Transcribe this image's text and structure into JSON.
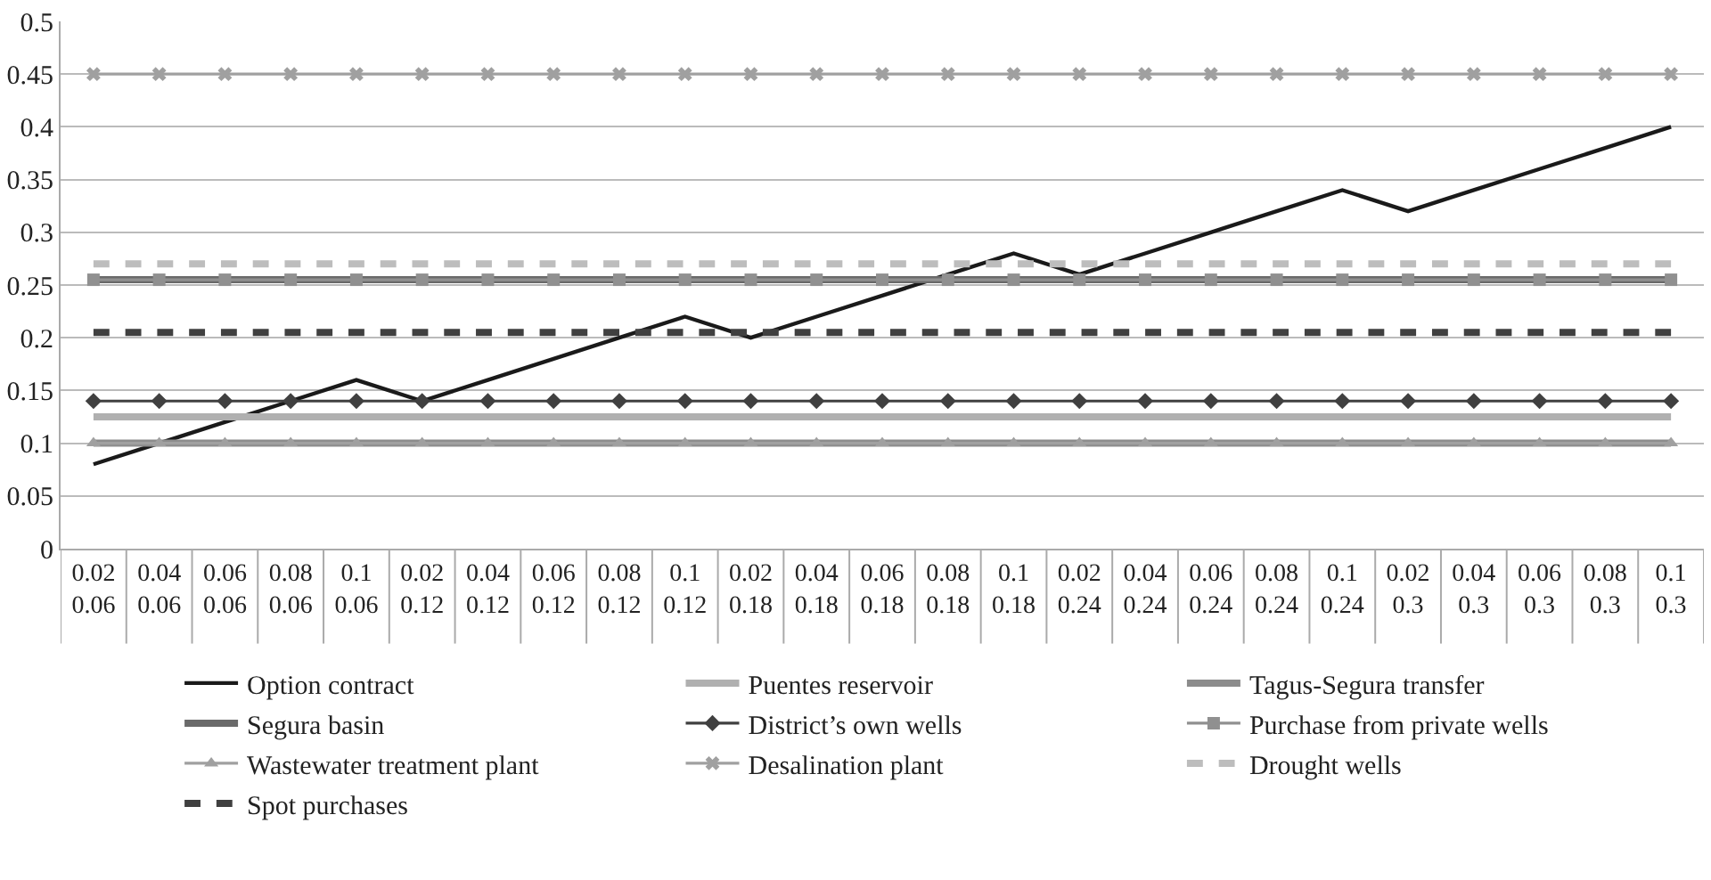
{
  "chart_data": {
    "type": "line",
    "categories": [
      "0.02\n0.06",
      "0.04\n0.06",
      "0.06\n0.06",
      "0.08\n0.06",
      "0.1\n0.06",
      "0.02\n0.12",
      "0.04\n0.12",
      "0.06\n0.12",
      "0.08\n0.12",
      "0.1\n0.12",
      "0.02\n0.18",
      "0.04\n0.18",
      "0.06\n0.18",
      "0.08\n0.18",
      "0.1\n0.18",
      "0.02\n0.24",
      "0.04\n0.24",
      "0.06\n0.24",
      "0.08\n0.24",
      "0.1\n0.24",
      "0.02\n0.3",
      "0.04\n0.3",
      "0.06\n0.3",
      "0.08\n0.3",
      "0.1\n0.3"
    ],
    "series": [
      {
        "name": "Option contract",
        "color": "#1a1a1a",
        "marker": "none",
        "line_style": "solid",
        "values": [
          0.08,
          0.1,
          0.12,
          0.14,
          0.16,
          0.14,
          0.16,
          0.18,
          0.2,
          0.22,
          0.2,
          0.22,
          0.24,
          0.26,
          0.28,
          0.26,
          0.28,
          0.3,
          0.32,
          0.34,
          0.32,
          0.34,
          0.36,
          0.38,
          0.4
        ]
      },
      {
        "name": "Puentes reservoir",
        "color": "#b0b0b0",
        "marker": "none",
        "line_style": "solid",
        "values": [
          0.125,
          0.125,
          0.125,
          0.125,
          0.125,
          0.125,
          0.125,
          0.125,
          0.125,
          0.125,
          0.125,
          0.125,
          0.125,
          0.125,
          0.125,
          0.125,
          0.125,
          0.125,
          0.125,
          0.125,
          0.125,
          0.125,
          0.125,
          0.125,
          0.125
        ]
      },
      {
        "name": "Tagus-Segura transfer",
        "color": "#8c8c8c",
        "marker": "none",
        "line_style": "solid",
        "values": [
          0.1,
          0.1,
          0.1,
          0.1,
          0.1,
          0.1,
          0.1,
          0.1,
          0.1,
          0.1,
          0.1,
          0.1,
          0.1,
          0.1,
          0.1,
          0.1,
          0.1,
          0.1,
          0.1,
          0.1,
          0.1,
          0.1,
          0.1,
          0.1,
          0.1
        ]
      },
      {
        "name": "Segura basin",
        "color": "#6a6a6a",
        "marker": "none",
        "line_style": "solid",
        "values": [
          0.255,
          0.255,
          0.255,
          0.255,
          0.255,
          0.255,
          0.255,
          0.255,
          0.255,
          0.255,
          0.255,
          0.255,
          0.255,
          0.255,
          0.255,
          0.255,
          0.255,
          0.255,
          0.255,
          0.255,
          0.255,
          0.255,
          0.255,
          0.255,
          0.255
        ]
      },
      {
        "name": "District’s own wells",
        "color": "#404040",
        "marker": "diamond",
        "line_style": "solid",
        "values": [
          0.14,
          0.14,
          0.14,
          0.14,
          0.14,
          0.14,
          0.14,
          0.14,
          0.14,
          0.14,
          0.14,
          0.14,
          0.14,
          0.14,
          0.14,
          0.14,
          0.14,
          0.14,
          0.14,
          0.14,
          0.14,
          0.14,
          0.14,
          0.14,
          0.14
        ]
      },
      {
        "name": "Purchase from private wells",
        "color": "#909090",
        "marker": "square",
        "line_style": "solid",
        "values": [
          0.255,
          0.255,
          0.255,
          0.255,
          0.255,
          0.255,
          0.255,
          0.255,
          0.255,
          0.255,
          0.255,
          0.255,
          0.255,
          0.255,
          0.255,
          0.255,
          0.255,
          0.255,
          0.255,
          0.255,
          0.255,
          0.255,
          0.255,
          0.255,
          0.255
        ]
      },
      {
        "name": "Wastewater treatment plant",
        "color": "#a0a0a0",
        "marker": "triangle",
        "line_style": "solid",
        "values": [
          0.1,
          0.1,
          0.1,
          0.1,
          0.1,
          0.1,
          0.1,
          0.1,
          0.1,
          0.1,
          0.1,
          0.1,
          0.1,
          0.1,
          0.1,
          0.1,
          0.1,
          0.1,
          0.1,
          0.1,
          0.1,
          0.1,
          0.1,
          0.1,
          0.1
        ]
      },
      {
        "name": "Desalination plant",
        "color": "#a0a0a0",
        "marker": "cross",
        "line_style": "solid",
        "values": [
          0.45,
          0.45,
          0.45,
          0.45,
          0.45,
          0.45,
          0.45,
          0.45,
          0.45,
          0.45,
          0.45,
          0.45,
          0.45,
          0.45,
          0.45,
          0.45,
          0.45,
          0.45,
          0.45,
          0.45,
          0.45,
          0.45,
          0.45,
          0.45,
          0.45
        ]
      },
      {
        "name": "Drought wells",
        "color": "#bdbdbd",
        "marker": "none",
        "line_style": "dashed",
        "values": [
          0.27,
          0.27,
          0.27,
          0.27,
          0.27,
          0.27,
          0.27,
          0.27,
          0.27,
          0.27,
          0.27,
          0.27,
          0.27,
          0.27,
          0.27,
          0.27,
          0.27,
          0.27,
          0.27,
          0.27,
          0.27,
          0.27,
          0.27,
          0.27,
          0.27
        ]
      },
      {
        "name": "Spot purchases",
        "color": "#404040",
        "marker": "none",
        "line_style": "dashed",
        "values": [
          0.205,
          0.205,
          0.205,
          0.205,
          0.205,
          0.205,
          0.205,
          0.205,
          0.205,
          0.205,
          0.205,
          0.205,
          0.205,
          0.205,
          0.205,
          0.205,
          0.205,
          0.205,
          0.205,
          0.205,
          0.205,
          0.205,
          0.205,
          0.205,
          0.205
        ]
      }
    ],
    "ylim": [
      0,
      0.5
    ],
    "yticks": [
      0,
      0.05,
      0.1,
      0.15,
      0.2,
      0.25,
      0.3,
      0.35,
      0.4,
      0.45,
      0.5
    ],
    "grid": "y",
    "legend": "bottom"
  }
}
